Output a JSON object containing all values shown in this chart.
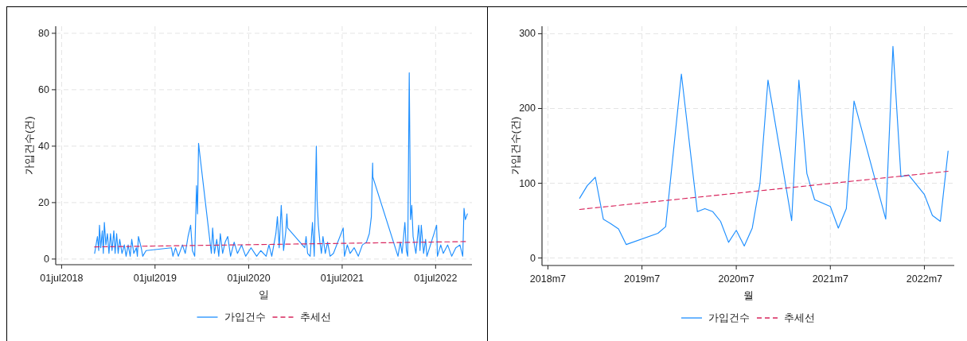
{
  "chart_data": [
    {
      "type": "line",
      "xlabel": "일",
      "ylabel": "가입건수(건)",
      "xlim": [
        "2018-06-08",
        "2022-11-20"
      ],
      "xticks": [
        {
          "value": "2018-07-01",
          "label": "01jul2018"
        },
        {
          "value": "2019-07-01",
          "label": "01jul2019"
        },
        {
          "value": "2020-07-01",
          "label": "01jul2020"
        },
        {
          "value": "2021-07-01",
          "label": "01jul2021"
        },
        {
          "value": "2022-07-01",
          "label": "01jul2022"
        }
      ],
      "ylim": [
        -2,
        82.5
      ],
      "yticks": [
        0,
        20,
        40,
        60,
        80
      ],
      "grid": true,
      "legend": "bottom",
      "series": [
        {
          "name": "가입건수",
          "color": "#1e8fff",
          "line_style": "solid",
          "x": [
            "2018-11-07",
            "2018-11-18",
            "2018-11-23",
            "2018-11-26",
            "2018-12-01",
            "2018-12-07",
            "2018-12-11",
            "2018-12-15",
            "2018-12-21",
            "2018-12-27",
            "2019-01-02",
            "2019-01-08",
            "2019-01-14",
            "2019-01-21",
            "2019-01-26",
            "2019-02-01",
            "2019-02-07",
            "2019-02-13",
            "2019-02-22",
            "2019-03-03",
            "2019-03-10",
            "2019-03-18",
            "2019-03-26",
            "2019-04-01",
            "2019-04-09",
            "2019-04-19",
            "2019-04-23",
            "2019-04-27",
            "2019-05-08",
            "2019-05-14",
            "2019-05-27",
            "2019-09-03",
            "2019-09-09",
            "2019-09-19",
            "2019-09-30",
            "2019-10-16",
            "2019-10-27",
            "2019-11-07",
            "2019-11-17",
            "2019-11-24",
            "2019-12-03",
            "2019-12-10",
            "2019-12-14",
            "2019-12-18",
            "2019-12-23",
            "2020-02-06",
            "2020-02-11",
            "2020-02-18",
            "2020-02-27",
            "2020-03-06",
            "2020-03-12",
            "2020-03-21",
            "2020-03-31",
            "2020-04-10",
            "2020-04-21",
            "2020-05-05",
            "2020-05-18",
            "2020-06-03",
            "2020-06-19",
            "2020-07-10",
            "2020-08-01",
            "2020-08-17",
            "2020-09-07",
            "2020-09-18",
            "2020-09-29",
            "2020-10-15",
            "2020-10-21",
            "2020-10-28",
            "2020-11-05",
            "2020-11-14",
            "2020-11-23",
            "2020-11-27",
            "2020-11-30",
            "2021-02-05",
            "2021-02-10",
            "2021-02-16",
            "2021-02-26",
            "2021-03-07",
            "2021-03-14",
            "2021-03-22",
            "2021-03-25",
            "2021-03-30",
            "2021-04-05",
            "2021-04-11",
            "2021-04-17",
            "2021-04-26",
            "2021-05-05",
            "2021-05-15",
            "2021-05-28",
            "2021-07-05",
            "2021-07-10",
            "2021-07-21",
            "2021-08-01",
            "2021-08-17",
            "2021-09-02",
            "2021-09-18",
            "2021-10-04",
            "2021-10-15",
            "2021-10-23",
            "2021-10-28",
            "2021-10-29",
            "2022-02-04",
            "2022-02-13",
            "2022-02-20",
            "2022-03-03",
            "2022-03-09",
            "2022-03-14",
            "2022-03-20",
            "2022-03-25",
            "2022-03-30",
            "2022-04-04",
            "2022-04-15",
            "2022-04-26",
            "2022-05-01",
            "2022-05-06",
            "2022-05-15",
            "2022-05-23",
            "2022-05-28",
            "2022-07-05",
            "2022-07-08",
            "2022-07-21",
            "2022-07-31",
            "2022-08-17",
            "2022-09-02",
            "2022-09-18",
            "2022-10-04",
            "2022-10-15",
            "2022-10-20",
            "2022-10-25",
            "2022-11-02"
          ],
          "values": [
            2,
            8,
            3,
            12,
            4,
            10,
            2,
            13,
            5,
            9,
            2,
            9,
            3,
            10,
            2,
            9,
            2,
            7,
            2,
            5,
            1,
            5,
            1,
            7,
            2,
            4,
            1,
            8,
            4,
            1,
            3,
            4,
            1,
            4,
            1,
            5,
            2,
            8,
            12,
            3,
            1,
            26,
            16,
            41,
            37,
            2,
            11,
            2,
            7,
            1,
            9,
            2,
            6,
            8,
            1,
            6,
            2,
            5,
            1,
            4,
            1,
            3,
            1,
            5,
            1,
            9,
            15,
            4,
            19,
            3,
            10,
            16,
            11,
            4,
            8,
            2,
            1,
            13,
            1,
            40,
            21,
            12,
            6,
            2,
            8,
            2,
            6,
            1,
            2,
            11,
            1,
            5,
            2,
            4,
            1,
            5,
            6,
            9,
            15,
            34,
            29,
            1,
            6,
            2,
            13,
            3,
            1,
            66,
            14,
            19,
            8,
            2,
            12,
            3,
            12,
            2,
            7,
            1,
            12,
            1,
            5,
            2,
            5,
            1,
            4,
            5,
            1,
            18,
            14,
            16
          ]
        },
        {
          "name": "추세선",
          "color": "#d8245c",
          "line_style": "dashed",
          "x": [
            "2018-11-07",
            "2022-11-02"
          ],
          "values": [
            4.3,
            6.2
          ]
        }
      ]
    },
    {
      "type": "line",
      "xlabel": "월",
      "ylabel": "가입건수(건)",
      "xlim": [
        "2018-06-08",
        "2022-10-25"
      ],
      "xticks": [
        {
          "value": "2018-07",
          "label": "2018m7"
        },
        {
          "value": "2019-07",
          "label": "2019m7"
        },
        {
          "value": "2020-07",
          "label": "2020m7"
        },
        {
          "value": "2021-07",
          "label": "2021m7"
        },
        {
          "value": "2022-07",
          "label": "2022m7"
        }
      ],
      "ylim": [
        -10,
        310
      ],
      "yticks": [
        0,
        100,
        200,
        300
      ],
      "grid": true,
      "legend": "bottom",
      "series": [
        {
          "name": "가입건수",
          "color": "#1e8fff",
          "line_style": "solid",
          "x": [
            "2018-11",
            "2018-12",
            "2019-01",
            "2019-02",
            "2019-03",
            "2019-04",
            "2019-05",
            "2019-09",
            "2019-10",
            "2019-12",
            "2020-02",
            "2020-03",
            "2020-04",
            "2020-05",
            "2020-06",
            "2020-07",
            "2020-08",
            "2020-09",
            "2020-10",
            "2020-11",
            "2021-02",
            "2021-03",
            "2021-04",
            "2021-05",
            "2021-07",
            "2021-08",
            "2021-09",
            "2021-10",
            "2022-02",
            "2022-03",
            "2022-04",
            "2022-05",
            "2022-07",
            "2022-08",
            "2022-09",
            "2022-10"
          ],
          "values": [
            80,
            97,
            108,
            52,
            46,
            39,
            18,
            33,
            42,
            246,
            62,
            66,
            62,
            49,
            21,
            37,
            16,
            40,
            100,
            238,
            50,
            238,
            113,
            78,
            69,
            40,
            66,
            210,
            52,
            283,
            109,
            111,
            85,
            57,
            49,
            143
          ]
        },
        {
          "name": "추세선",
          "color": "#d8245c",
          "line_style": "dashed",
          "x": [
            "2018-11",
            "2022-10"
          ],
          "values": [
            65,
            116
          ]
        }
      ]
    }
  ]
}
